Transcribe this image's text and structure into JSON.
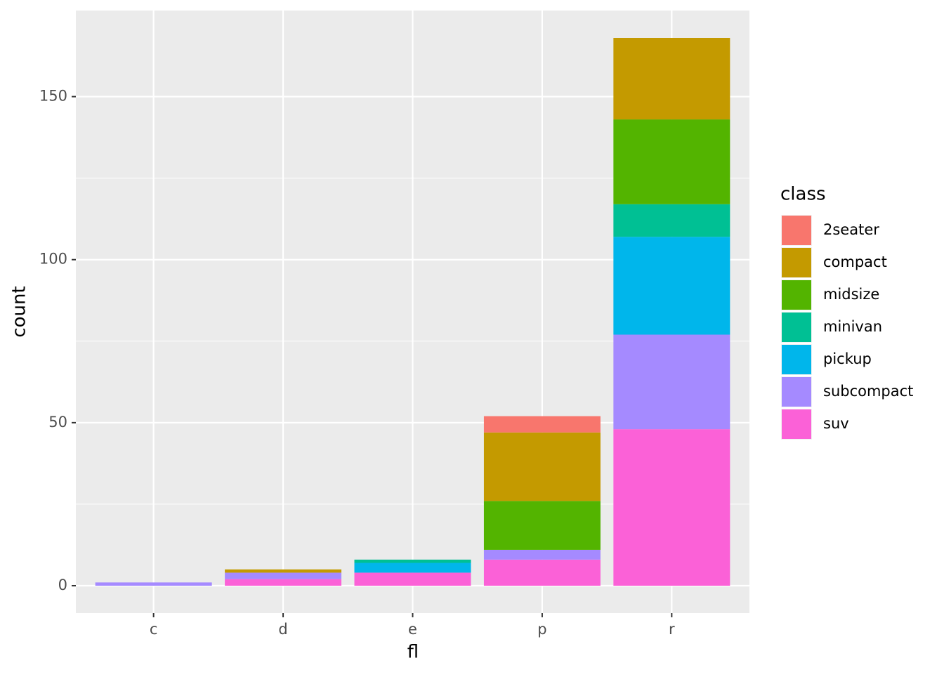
{
  "chart_data": {
    "type": "bar",
    "stacked": true,
    "x_label": "fl",
    "y_label": "count",
    "legend_title": "class",
    "categories": [
      "c",
      "d",
      "e",
      "p",
      "r"
    ],
    "series": [
      {
        "name": "2seater",
        "color": "#F8766D",
        "values": [
          0,
          0,
          0,
          5,
          0
        ]
      },
      {
        "name": "compact",
        "color": "#C49A00",
        "values": [
          0,
          1,
          0,
          21,
          25
        ]
      },
      {
        "name": "midsize",
        "color": "#53B400",
        "values": [
          0,
          0,
          0,
          15,
          26
        ]
      },
      {
        "name": "minivan",
        "color": "#00C094",
        "values": [
          0,
          0,
          1,
          0,
          10
        ]
      },
      {
        "name": "pickup",
        "color": "#00B6EB",
        "values": [
          0,
          0,
          3,
          0,
          30
        ]
      },
      {
        "name": "subcompact",
        "color": "#A58AFF",
        "values": [
          1,
          2,
          0,
          3,
          29
        ]
      },
      {
        "name": "suv",
        "color": "#FB61D7",
        "values": [
          0,
          2,
          4,
          8,
          48
        ]
      }
    ],
    "ylim": [
      -8.4,
      176.4
    ],
    "yticks": [
      0,
      50,
      100,
      150
    ],
    "grid": true,
    "legend_position": "right"
  }
}
